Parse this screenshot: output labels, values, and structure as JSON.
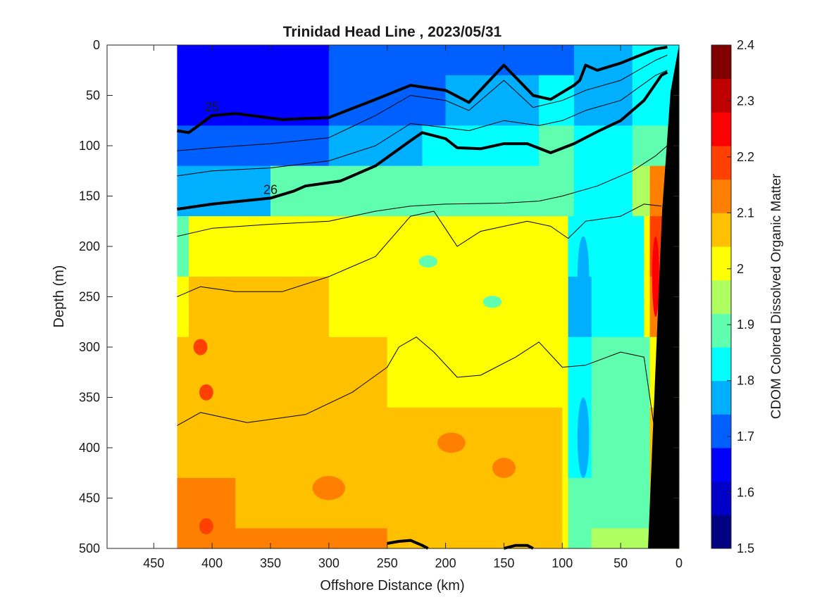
{
  "chart_data": {
    "type": "heatmap",
    "title": "Trinidad Head Line , 2023/05/31",
    "xlabel": "Offshore Distance (km)",
    "ylabel": "Depth (m)",
    "colorbar_label": "CDOM Colored Dissolved Organic Matter",
    "xlim": [
      490,
      0
    ],
    "ylim": [
      0,
      500
    ],
    "x_reversed": true,
    "y_reversed": true,
    "x_ticks": [
      450,
      400,
      350,
      300,
      250,
      200,
      150,
      100,
      50,
      0
    ],
    "y_ticks": [
      0,
      50,
      100,
      150,
      200,
      250,
      300,
      350,
      400,
      450,
      500
    ],
    "clim": [
      1.5,
      2.4
    ],
    "colorbar_ticks": [
      1.5,
      1.6,
      1.7,
      1.8,
      1.9,
      2,
      2.1,
      2.2,
      2.3,
      2.4
    ],
    "colorbar_levels": [
      "#000080",
      "#0000c8",
      "#0000ff",
      "#0060ff",
      "#00b0ff",
      "#00ffff",
      "#60ffb0",
      "#b0ff60",
      "#ffff00",
      "#ffc000",
      "#ff8000",
      "#ff4000",
      "#ff0000",
      "#c00000",
      "#800000"
    ],
    "data_extent_km": [
      430,
      0
    ],
    "rows": [
      {
        "depth": 0,
        "segments": [
          [
            430,
            1.62
          ],
          [
            300,
            1.7
          ],
          [
            140,
            1.72
          ],
          [
            90,
            1.76
          ],
          [
            40,
            1.8
          ],
          [
            20,
            1.84
          ],
          [
            0,
            1.84
          ]
        ]
      },
      {
        "depth": 60,
        "segments": [
          [
            430,
            1.66
          ],
          [
            300,
            1.72
          ],
          [
            200,
            1.78
          ],
          [
            120,
            1.8
          ],
          [
            90,
            1.76
          ],
          [
            40,
            1.84
          ],
          [
            0,
            1.88
          ]
        ]
      },
      {
        "depth": 100,
        "segments": [
          [
            430,
            1.7
          ],
          [
            300,
            1.78
          ],
          [
            220,
            1.84
          ],
          [
            120,
            1.88
          ],
          [
            90,
            1.8
          ],
          [
            40,
            1.9
          ],
          [
            0,
            1.94
          ]
        ]
      },
      {
        "depth": 140,
        "segments": [
          [
            430,
            1.78
          ],
          [
            350,
            1.88
          ],
          [
            250,
            1.9
          ],
          [
            100,
            1.9
          ],
          [
            90,
            1.8
          ],
          [
            40,
            1.96
          ],
          [
            25,
            2.1
          ],
          [
            0,
            2.1
          ]
        ]
      },
      {
        "depth": 200,
        "segments": [
          [
            430,
            1.88
          ],
          [
            420,
            1.98
          ],
          [
            250,
            2.0
          ],
          [
            100,
            2.0
          ],
          [
            95,
            1.8
          ],
          [
            75,
            1.84
          ],
          [
            30,
            2.0
          ],
          [
            25,
            2.18
          ],
          [
            0,
            2.18
          ]
        ]
      },
      {
        "depth": 260,
        "segments": [
          [
            430,
            2.02
          ],
          [
            420,
            2.04
          ],
          [
            300,
            2.0
          ],
          [
            100,
            2.0
          ],
          [
            95,
            1.78
          ],
          [
            75,
            1.84
          ],
          [
            30,
            2.0
          ],
          [
            25,
            2.12
          ],
          [
            0,
            2.12
          ]
        ]
      },
      {
        "depth": 320,
        "segments": [
          [
            430,
            2.08
          ],
          [
            380,
            2.06
          ],
          [
            250,
            2.02
          ],
          [
            100,
            2.0
          ],
          [
            95,
            1.8
          ],
          [
            75,
            1.86
          ],
          [
            25,
            2.02
          ],
          [
            0,
            2.02
          ]
        ]
      },
      {
        "depth": 400,
        "segments": [
          [
            430,
            2.08
          ],
          [
            360,
            2.06
          ],
          [
            250,
            2.04
          ],
          [
            100,
            2.0
          ],
          [
            95,
            1.84
          ],
          [
            75,
            1.9
          ],
          [
            25,
            2.06
          ],
          [
            0,
            2.06
          ]
        ]
      },
      {
        "depth": 460,
        "segments": [
          [
            430,
            2.12
          ],
          [
            380,
            2.08
          ],
          [
            250,
            2.08
          ],
          [
            100,
            2.02
          ],
          [
            95,
            1.86
          ],
          [
            75,
            1.92
          ],
          [
            25,
            2.08
          ],
          [
            0,
            2.08
          ]
        ]
      },
      {
        "depth": 500,
        "segments": [
          [
            430,
            2.12
          ],
          [
            380,
            2.1
          ],
          [
            250,
            2.06
          ],
          [
            100,
            2.0
          ],
          [
            95,
            1.86
          ],
          [
            75,
            1.94
          ],
          [
            25,
            2.08
          ],
          [
            0,
            2.08
          ]
        ]
      }
    ],
    "patches": [
      {
        "x": 410,
        "y": 300,
        "rx": 6,
        "ry": 8,
        "value": 2.2
      },
      {
        "x": 405,
        "y": 345,
        "rx": 6,
        "ry": 8,
        "value": 2.2
      },
      {
        "x": 405,
        "y": 478,
        "rx": 6,
        "ry": 8,
        "value": 2.2
      },
      {
        "x": 195,
        "y": 395,
        "rx": 12,
        "ry": 10,
        "value": 2.1
      },
      {
        "x": 150,
        "y": 420,
        "rx": 10,
        "ry": 10,
        "value": 2.1
      },
      {
        "x": 300,
        "y": 440,
        "rx": 14,
        "ry": 12,
        "value": 2.1
      },
      {
        "x": 215,
        "y": 215,
        "rx": 8,
        "ry": 6,
        "value": 1.9
      },
      {
        "x": 160,
        "y": 255,
        "rx": 8,
        "ry": 6,
        "value": 1.9
      },
      {
        "x": 55,
        "y": 320,
        "rx": 10,
        "ry": 12,
        "value": 1.9
      },
      {
        "x": 82,
        "y": 230,
        "rx": 5,
        "ry": 40,
        "value": 1.76
      },
      {
        "x": 82,
        "y": 390,
        "rx": 5,
        "ry": 40,
        "value": 1.76
      },
      {
        "x": 20,
        "y": 230,
        "rx": 3,
        "ry": 40,
        "value": 2.24
      }
    ],
    "density_contours": [
      {
        "label": "25",
        "bold": true,
        "points": [
          [
            430,
            85
          ],
          [
            420,
            87
          ],
          [
            400,
            70
          ],
          [
            380,
            68
          ],
          [
            340,
            74
          ],
          [
            300,
            72
          ],
          [
            260,
            54
          ],
          [
            230,
            40
          ],
          [
            200,
            45
          ],
          [
            180,
            57
          ],
          [
            150,
            20
          ],
          [
            125,
            50
          ],
          [
            110,
            54
          ],
          [
            90,
            40
          ],
          [
            85,
            35
          ],
          [
            80,
            20
          ],
          [
            70,
            25
          ],
          [
            50,
            18
          ],
          [
            20,
            4
          ],
          [
            10,
            2
          ]
        ]
      },
      {
        "label": "26",
        "bold": true,
        "points": [
          [
            430,
            163
          ],
          [
            400,
            158
          ],
          [
            350,
            152
          ],
          [
            330,
            145
          ],
          [
            320,
            140
          ],
          [
            290,
            135
          ],
          [
            260,
            120
          ],
          [
            230,
            95
          ],
          [
            220,
            87
          ],
          [
            200,
            93
          ],
          [
            190,
            102
          ],
          [
            170,
            103
          ],
          [
            150,
            98
          ],
          [
            130,
            98
          ],
          [
            110,
            107
          ],
          [
            90,
            98
          ],
          [
            70,
            86
          ],
          [
            50,
            75
          ],
          [
            30,
            55
          ],
          [
            15,
            30
          ],
          [
            10,
            27
          ]
        ]
      },
      {
        "label": "",
        "bold": false,
        "points": [
          [
            430,
            105
          ],
          [
            400,
            102
          ],
          [
            350,
            98
          ],
          [
            300,
            92
          ],
          [
            260,
            70
          ],
          [
            230,
            50
          ],
          [
            200,
            55
          ],
          [
            180,
            65
          ],
          [
            150,
            35
          ],
          [
            125,
            62
          ],
          [
            100,
            55
          ],
          [
            80,
            45
          ],
          [
            50,
            35
          ],
          [
            20,
            15
          ],
          [
            10,
            10
          ]
        ]
      },
      {
        "label": "",
        "bold": false,
        "points": [
          [
            430,
            130
          ],
          [
            400,
            125
          ],
          [
            350,
            122
          ],
          [
            300,
            115
          ],
          [
            260,
            100
          ],
          [
            230,
            78
          ],
          [
            200,
            82
          ],
          [
            180,
            85
          ],
          [
            150,
            75
          ],
          [
            120,
            80
          ],
          [
            100,
            75
          ],
          [
            80,
            65
          ],
          [
            50,
            55
          ],
          [
            20,
            30
          ],
          [
            10,
            25
          ]
        ]
      },
      {
        "label": "",
        "bold": false,
        "points": [
          [
            430,
            190
          ],
          [
            400,
            182
          ],
          [
            350,
            178
          ],
          [
            300,
            175
          ],
          [
            260,
            165
          ],
          [
            230,
            160
          ],
          [
            200,
            158
          ],
          [
            150,
            157
          ],
          [
            120,
            155
          ],
          [
            100,
            150
          ],
          [
            70,
            140
          ],
          [
            40,
            125
          ],
          [
            20,
            110
          ],
          [
            10,
            100
          ]
        ]
      },
      {
        "label": "",
        "bold": false,
        "points": [
          [
            430,
            250
          ],
          [
            410,
            240
          ],
          [
            380,
            245
          ],
          [
            340,
            245
          ],
          [
            300,
            230
          ],
          [
            260,
            210
          ],
          [
            230,
            170
          ],
          [
            210,
            165
          ],
          [
            190,
            200
          ],
          [
            170,
            185
          ],
          [
            130,
            175
          ],
          [
            110,
            180
          ],
          [
            95,
            192
          ],
          [
            80,
            175
          ],
          [
            50,
            170
          ],
          [
            30,
            158
          ],
          [
            15,
            160
          ]
        ]
      },
      {
        "label": "",
        "bold": false,
        "points": [
          [
            430,
            378
          ],
          [
            410,
            365
          ],
          [
            370,
            375
          ],
          [
            320,
            367
          ],
          [
            280,
            345
          ],
          [
            250,
            320
          ],
          [
            240,
            300
          ],
          [
            225,
            290
          ],
          [
            210,
            305
          ],
          [
            190,
            330
          ],
          [
            170,
            328
          ],
          [
            140,
            310
          ],
          [
            120,
            295
          ],
          [
            100,
            320
          ],
          [
            80,
            318
          ],
          [
            50,
            305
          ],
          [
            30,
            310
          ],
          [
            20,
            390
          ]
        ]
      },
      {
        "label": "",
        "bold": true,
        "points": [
          [
            250,
            495
          ],
          [
            240,
            493
          ],
          [
            230,
            492
          ],
          [
            220,
            497
          ],
          [
            215,
            500
          ]
        ]
      },
      {
        "label": "",
        "bold": true,
        "points": [
          [
            150,
            500
          ],
          [
            140,
            497
          ],
          [
            130,
            497
          ],
          [
            125,
            500
          ]
        ]
      }
    ]
  }
}
